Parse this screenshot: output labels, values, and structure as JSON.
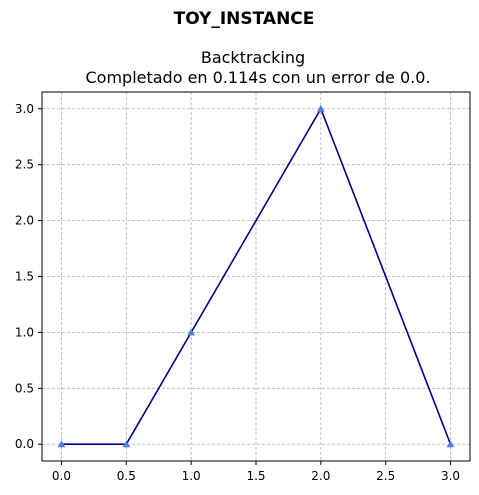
{
  "chart_data": {
    "type": "line",
    "suptitle": "TOY_INSTANCE",
    "title_line1": "Backtracking",
    "title_line2": "Completado en 0.114s con un error de 0.0.",
    "xlabel": "",
    "ylabel": "",
    "x": [
      0.0,
      0.5,
      1.0,
      2.0,
      3.0
    ],
    "series": [
      {
        "values": [
          0.0,
          0.0,
          1.0,
          3.0,
          0.0
        ],
        "color": "#00008b",
        "marker": "triangle",
        "marker_color": "#4f7fd0"
      }
    ],
    "xlim": [
      -0.15,
      3.15
    ],
    "ylim": [
      -0.15,
      3.15
    ],
    "xticks": [
      "0.0",
      "0.5",
      "1.0",
      "1.5",
      "2.0",
      "2.5",
      "3.0"
    ],
    "yticks": [
      "0.0",
      "0.5",
      "1.0",
      "1.5",
      "2.0",
      "2.5",
      "3.0"
    ],
    "grid": true
  }
}
